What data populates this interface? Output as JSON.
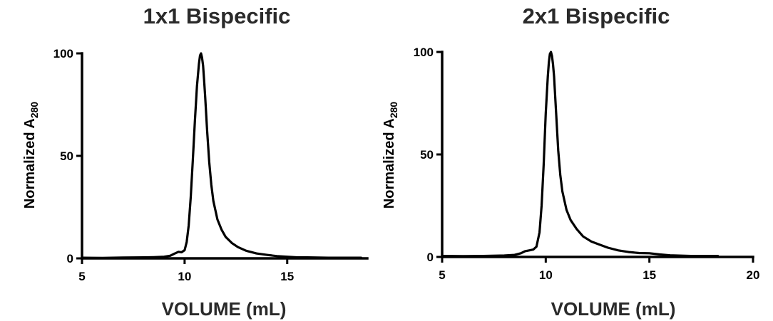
{
  "chart_data": [
    {
      "type": "line",
      "title": "1x1 Bispecific",
      "xlabel": "VOLUME (mL)",
      "ylabel": "Normalized A",
      "ylabel_subscript": "280",
      "xlim": [
        5,
        18.9
      ],
      "ylim": [
        0,
        100
      ],
      "xticks": [
        5,
        10,
        15
      ],
      "yticks": [
        0,
        50,
        100
      ],
      "grid": false,
      "series": [
        {
          "x": [
            5.0,
            6.0,
            7.0,
            8.0,
            8.5,
            9.0,
            9.3,
            9.5,
            9.7,
            9.85,
            10.0,
            10.1,
            10.2,
            10.3,
            10.4,
            10.5,
            10.6,
            10.7,
            10.75,
            10.8,
            10.85,
            10.9,
            10.95,
            11.0,
            11.1,
            11.2,
            11.3,
            11.4,
            11.6,
            11.8,
            12.0,
            12.3,
            12.6,
            13.0,
            13.5,
            14.0,
            14.5,
            15.0,
            15.5,
            16.0,
            17.0,
            18.0,
            18.6
          ],
          "y": [
            0.3,
            0.2,
            0.4,
            0.5,
            0.6,
            0.8,
            1.3,
            2.3,
            3.2,
            3.0,
            4.0,
            8.0,
            16.0,
            30.0,
            48.0,
            67.0,
            84.0,
            95.0,
            99.0,
            100.0,
            98.0,
            94.0,
            87.0,
            79.0,
            62.0,
            47.0,
            36.0,
            28.0,
            19.0,
            14.0,
            10.5,
            7.5,
            5.5,
            3.7,
            2.4,
            1.7,
            1.1,
            0.8,
            0.5,
            0.5,
            0.3,
            0.3,
            0.3
          ]
        }
      ]
    },
    {
      "type": "line",
      "title": "2x1 Bispecific",
      "xlabel": "VOLUME (mL)",
      "ylabel": "Normalized A",
      "ylabel_subscript": "280",
      "xlim": [
        5,
        20
      ],
      "ylim": [
        0,
        100
      ],
      "xticks": [
        5,
        10,
        15,
        20
      ],
      "yticks": [
        0,
        50,
        100
      ],
      "grid": false,
      "series": [
        {
          "x": [
            5.0,
            6.0,
            7.0,
            8.0,
            8.5,
            8.8,
            9.0,
            9.2,
            9.4,
            9.55,
            9.7,
            9.8,
            9.9,
            10.0,
            10.1,
            10.15,
            10.2,
            10.25,
            10.3,
            10.35,
            10.4,
            10.5,
            10.6,
            10.7,
            10.8,
            11.0,
            11.2,
            11.5,
            11.8,
            12.2,
            12.6,
            13.0,
            13.5,
            14.0,
            14.5,
            15.0,
            15.5,
            16.0,
            17.0,
            18.3
          ],
          "y": [
            0.5,
            0.4,
            0.5,
            0.7,
            1.0,
            1.8,
            2.8,
            3.2,
            3.6,
            5.0,
            12.0,
            25.0,
            45.0,
            70.0,
            88.0,
            95.0,
            99.0,
            100.0,
            98.0,
            94.0,
            88.0,
            70.0,
            52.0,
            40.0,
            32.0,
            23.0,
            18.0,
            13.5,
            10.0,
            7.5,
            6.0,
            4.5,
            3.2,
            2.4,
            1.9,
            1.8,
            1.2,
            0.8,
            0.5,
            0.5
          ]
        }
      ]
    }
  ]
}
